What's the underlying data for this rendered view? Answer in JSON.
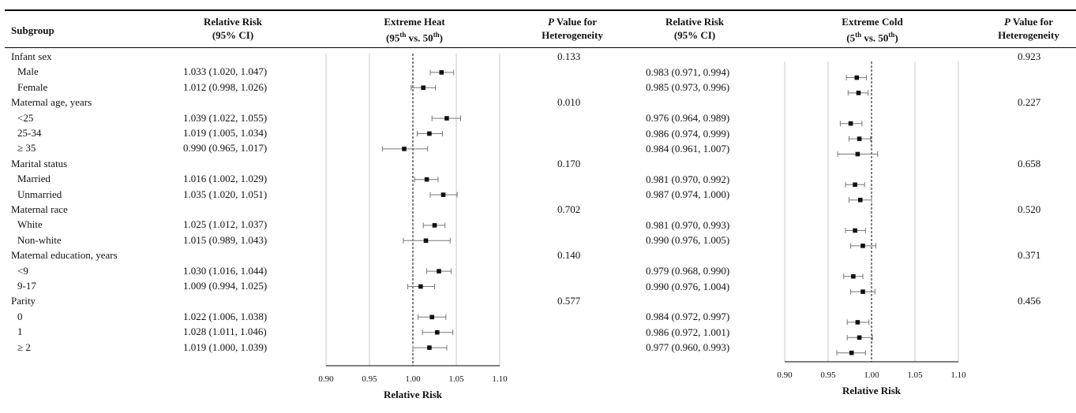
{
  "headers": {
    "subgroup": "Subgroup",
    "rr_line1": "Relative Risk",
    "rr_line2": "(95% CI)",
    "heat_line1": "Extreme Heat",
    "heat_line2_base": "(95",
    "heat_line2_sup1": "th",
    "heat_line2_mid": " vs. 50",
    "heat_line2_sup2": "th",
    "heat_line2_end": ")",
    "cold_line1": "Extreme Cold",
    "cold_line2_base": "(5",
    "cold_line2_sup1": "th",
    "cold_line2_mid": " vs. 50",
    "cold_line2_sup2": "th",
    "cold_line2_end": ")",
    "p_italic": "P",
    "p_rest": " Value for",
    "p_line2": "Heterogeneity"
  },
  "chart_data": {
    "type": "forest",
    "rows": [
      {
        "label": "Infant sex",
        "group": true,
        "p_heat": "0.133",
        "p_cold": "0.923"
      },
      {
        "label": "Male",
        "heat_text": "1.033 (1.020, 1.047)",
        "heat": [
          1.033,
          1.02,
          1.047
        ],
        "cold_text": "0.983 (0.971, 0.994)",
        "cold": [
          0.983,
          0.971,
          0.994
        ]
      },
      {
        "label": "Female",
        "heat_text": "1.012 (0.998, 1.026)",
        "heat": [
          1.012,
          0.998,
          1.026
        ],
        "cold_text": "0.985 (0.973, 0.996)",
        "cold": [
          0.985,
          0.973,
          0.996
        ]
      },
      {
        "label": "Maternal age, years",
        "group": true,
        "p_heat": "0.010",
        "p_cold": "0.227"
      },
      {
        "label": "<25",
        "heat_text": "1.039 (1.022, 1.055)",
        "heat": [
          1.039,
          1.022,
          1.055
        ],
        "cold_text": "0.976 (0.964, 0.989)",
        "cold": [
          0.976,
          0.964,
          0.989
        ]
      },
      {
        "label": "25-34",
        "heat_text": "1.019 (1.005, 1.034)",
        "heat": [
          1.019,
          1.005,
          1.034
        ],
        "cold_text": "0.986 (0.974, 0.999)",
        "cold": [
          0.986,
          0.974,
          0.999
        ]
      },
      {
        "label": "≥ 35",
        "heat_text": "0.990 (0.965, 1.017)",
        "heat": [
          0.99,
          0.965,
          1.017
        ],
        "cold_text": "0.984 (0.961, 1.007)",
        "cold": [
          0.984,
          0.961,
          1.007
        ]
      },
      {
        "label": "Marital status",
        "group": true,
        "p_heat": "0.170",
        "p_cold": "0.658"
      },
      {
        "label": "Married",
        "heat_text": "1.016 (1.002, 1.029)",
        "heat": [
          1.016,
          1.002,
          1.029
        ],
        "cold_text": "0.981 (0.970, 0.992)",
        "cold": [
          0.981,
          0.97,
          0.992
        ]
      },
      {
        "label": "Unmarried",
        "heat_text": "1.035 (1.020, 1.051)",
        "heat": [
          1.035,
          1.02,
          1.051
        ],
        "cold_text": "0.987 (0.974, 1.000)",
        "cold": [
          0.987,
          0.974,
          1.0
        ]
      },
      {
        "label": "Maternal race",
        "group": true,
        "p_heat": "0.702",
        "p_cold": "0.520"
      },
      {
        "label": "White",
        "heat_text": "1.025 (1.012, 1.037)",
        "heat": [
          1.025,
          1.012,
          1.037
        ],
        "cold_text": "0.981 (0.970, 0.993)",
        "cold": [
          0.981,
          0.97,
          0.993
        ]
      },
      {
        "label": "Non-white",
        "heat_text": "1.015 (0.989, 1.043)",
        "heat": [
          1.015,
          0.989,
          1.043
        ],
        "cold_text": "0.990 (0.976, 1.005)",
        "cold": [
          0.99,
          0.976,
          1.005
        ]
      },
      {
        "label": "Maternal education, years",
        "group": true,
        "p_heat": "0.140",
        "p_cold": "0.371"
      },
      {
        "label": "<9",
        "heat_text": "1.030 (1.016, 1.044)",
        "heat": [
          1.03,
          1.016,
          1.044
        ],
        "cold_text": "0.979 (0.968, 0.990)",
        "cold": [
          0.979,
          0.968,
          0.99
        ]
      },
      {
        "label": "9-17",
        "heat_text": "1.009 (0.994, 1.025)",
        "heat": [
          1.009,
          0.994,
          1.025
        ],
        "cold_text": "0.990 (0.976, 1.004)",
        "cold": [
          0.99,
          0.976,
          1.004
        ]
      },
      {
        "label": "Parity",
        "group": true,
        "p_heat": "0.577",
        "p_cold": "0.456"
      },
      {
        "label": "0",
        "heat_text": "1.022 (1.006, 1.038)",
        "heat": [
          1.022,
          1.006,
          1.038
        ],
        "cold_text": "0.984 (0.972, 0.997)",
        "cold": [
          0.984,
          0.972,
          0.997
        ]
      },
      {
        "label": "1",
        "heat_text": "1.028 (1.011, 1.046)",
        "heat": [
          1.028,
          1.011,
          1.046
        ],
        "cold_text": "0.986 (0.972, 1.001)",
        "cold": [
          0.986,
          0.972,
          1.001
        ]
      },
      {
        "label": "≥ 2",
        "heat_text": "1.019 (1.000, 1.039)",
        "heat": [
          1.019,
          1.0,
          1.039
        ],
        "cold_text": "0.977 (0.960, 0.993)",
        "cold": [
          0.977,
          0.96,
          0.993
        ]
      }
    ],
    "xlim": [
      0.9,
      1.1
    ],
    "ticks": [
      "0.90",
      "0.95",
      "1.00",
      "1.05",
      "1.10"
    ],
    "reference": 1.0,
    "xlabel": "Relative Risk",
    "colors": {
      "marker": "#111111",
      "ci_line": "#777777",
      "grid": "#c8c8c8",
      "axis": "#000000"
    }
  }
}
